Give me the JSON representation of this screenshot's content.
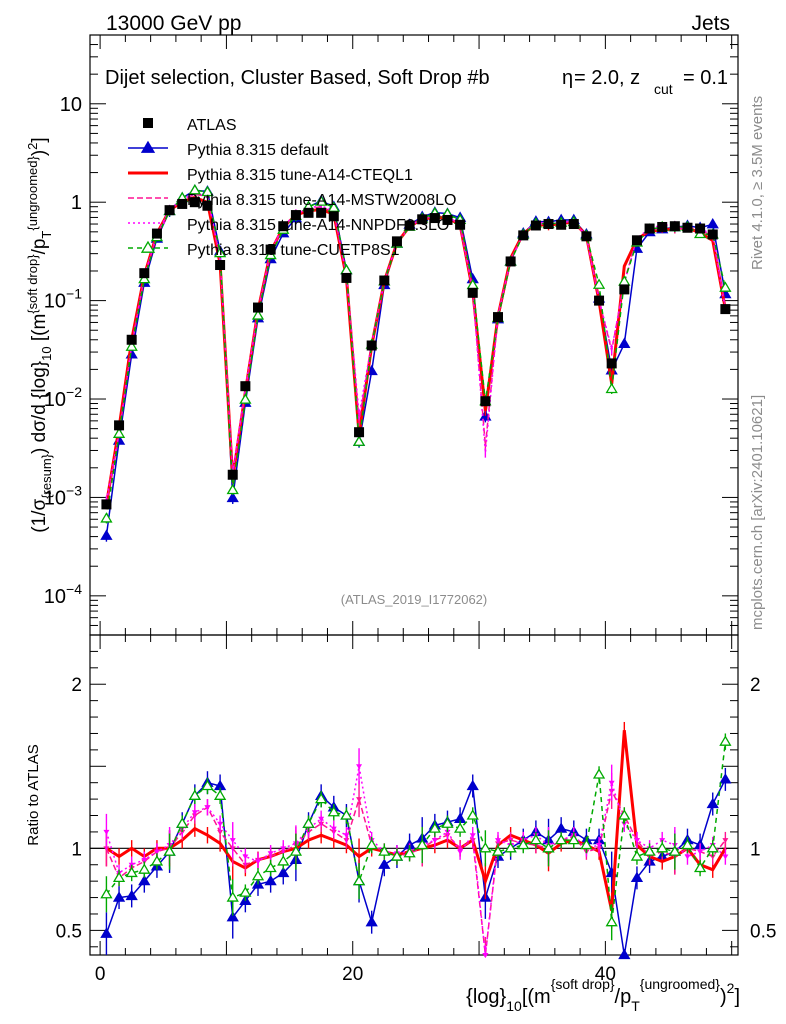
{
  "header": {
    "left": "13000 GeV pp",
    "right": "Jets"
  },
  "chart_data": {
    "type": "line",
    "title": "Dijet selection, Cluster Based, Soft Drop #b",
    "title_extra": "= 2.0, z",
    "title_zcut_sub": "cut",
    "title_zcut_val": "= 0.1",
    "title_eta_symbol": "η",
    "watermark": "(ATLAS_2019_I1772062)",
    "side_text_top": "Rivet 4.1.0, ≥ 3.5M events",
    "side_text_bottom": "mcplots.cern.ch [arXiv:2401.10621]",
    "xlabel": "{log}10[(m^{soft drop}/p_T^{ungroomed})^2]",
    "xlabel_parts": {
      "a": "{log}",
      "b": "10",
      "c": "[(m",
      "d": "{soft drop}",
      "e": "/p",
      "f": "T",
      "g": "{ungroomed}",
      "h": ")",
      "i": "2",
      "j": "]"
    },
    "ylabel_parts": {
      "a": "(1/σ",
      "b": "{resum}",
      "c": ") dσ/d {log}",
      "d": "10",
      "e": " [(m",
      "f": "{soft drop}",
      "g": "/p",
      "h": "T",
      "i": "{ungroomed}",
      "j": ")",
      "k": "2",
      "l": "]"
    },
    "ratio_ylabel": "Ratio to ATLAS",
    "xlim": [
      -0.8,
      50.5
    ],
    "ylim": [
      4e-05,
      50
    ],
    "ratio_ylim": [
      0.35,
      2.3
    ],
    "xticks": [
      0,
      20,
      40
    ],
    "xtick_labels": [
      "0",
      "20",
      "40"
    ],
    "yticks": [
      0.0001,
      0.001,
      0.01,
      0.1,
      1,
      10
    ],
    "ytick_labels": [
      {
        "base": "10",
        "exp": "−4"
      },
      {
        "base": "10",
        "exp": "−3"
      },
      {
        "base": "10",
        "exp": "−2"
      },
      {
        "base": "10",
        "exp": "−1"
      },
      {
        "base": "1",
        "exp": ""
      },
      {
        "base": "10",
        "exp": ""
      }
    ],
    "ratio_yticks": [
      0.5,
      1,
      2
    ],
    "ratio_ytick_labels": [
      "0.5",
      "1",
      "2"
    ],
    "x": [
      0.5,
      1.5,
      2.5,
      3.5,
      4.5,
      5.5,
      6.5,
      7.5,
      8.5,
      9.5,
      10.5,
      11.5,
      12.5,
      13.5,
      14.5,
      15.5,
      16.5,
      17.5,
      18.5,
      19.5,
      20.5,
      21.5,
      22.5,
      23.5,
      24.5,
      25.5,
      26.5,
      27.5,
      28.5,
      29.5,
      30.5,
      31.5,
      32.5,
      33.5,
      34.5,
      35.5,
      36.5,
      37.5,
      38.5,
      39.5,
      40.5,
      41.5,
      42.5,
      43.5,
      44.5,
      45.5,
      46.5,
      47.5,
      48.5,
      49.5
    ],
    "series": [
      {
        "name": "ATLAS",
        "color": "#000000",
        "style": "data",
        "values": [
          0.00085,
          0.0054,
          0.04,
          0.19,
          0.48,
          0.83,
          0.96,
          1.0,
          0.92,
          0.23,
          0.0017,
          0.0135,
          0.085,
          0.33,
          0.57,
          0.74,
          0.78,
          0.78,
          0.72,
          0.17,
          0.0046,
          0.035,
          0.16,
          0.4,
          0.58,
          0.67,
          0.69,
          0.66,
          0.59,
          0.12,
          0.0095,
          0.068,
          0.25,
          0.46,
          0.58,
          0.6,
          0.59,
          0.6,
          0.45,
          0.1,
          0.023,
          0.13,
          0.41,
          0.54,
          0.56,
          0.57,
          0.55,
          0.54,
          0.47,
          0.082
        ]
      },
      {
        "name": "Pythia 8.315 default",
        "color": "#0000cc",
        "style": "solid-triangle",
        "ratio": [
          0.48,
          0.7,
          0.71,
          0.8,
          0.89,
          0.98,
          1.15,
          1.32,
          1.4,
          1.38,
          0.58,
          0.68,
          0.78,
          0.8,
          0.85,
          0.93,
          1.15,
          1.32,
          1.25,
          1.2,
          0.8,
          0.55,
          0.9,
          0.95,
          1.02,
          1.06,
          1.14,
          1.16,
          1.18,
          1.38,
          0.7,
          0.95,
          1.0,
          1.05,
          1.1,
          1.05,
          1.12,
          1.1,
          1.05,
          1.05,
          0.85,
          0.28,
          0.82,
          0.92,
          0.95,
          0.98,
          1.05,
          1.02,
          1.27,
          1.42
        ]
      },
      {
        "name": "Pythia 8.315 tune-A14-CTEQL1",
        "color": "#ff0000",
        "style": "solid-thick",
        "ratio": [
          1.0,
          0.95,
          1.0,
          0.95,
          1.0,
          1.0,
          1.05,
          1.12,
          1.08,
          1.03,
          0.92,
          0.88,
          0.93,
          0.95,
          0.98,
          1.0,
          1.05,
          1.08,
          1.05,
          1.02,
          0.95,
          1.0,
          0.98,
          0.96,
          0.98,
          1.0,
          1.02,
          1.05,
          1.0,
          1.05,
          0.8,
          1.02,
          1.08,
          1.05,
          1.02,
          0.97,
          1.03,
          1.05,
          1.02,
          0.98,
          0.62,
          1.72,
          1.02,
          0.95,
          0.92,
          0.95,
          1.0,
          0.9,
          0.87,
          1.0
        ]
      },
      {
        "name": "Pythia 8.315 tune-A14-MSTW2008LO",
        "color": "#ff1493",
        "style": "dashed",
        "ratio": [
          1.0,
          0.82,
          0.88,
          0.92,
          0.98,
          1.0,
          1.1,
          1.2,
          1.25,
          1.1,
          1.0,
          0.9,
          0.93,
          0.95,
          0.98,
          1.02,
          1.1,
          1.15,
          1.1,
          1.05,
          1.3,
          1.02,
          0.98,
          0.95,
          0.97,
          1.0,
          1.05,
          1.08,
          1.0,
          1.05,
          0.35,
          1.03,
          1.05,
          1.03,
          1.02,
          1.0,
          1.05,
          1.07,
          0.98,
          1.0,
          1.35,
          1.2,
          1.05,
          0.95,
          0.98,
          0.95,
          1.0,
          0.98,
          0.95,
          1.05
        ]
      },
      {
        "name": "Pythia 8.315 tune-A14-NNPDF2.3LO",
        "color": "#ff00ff",
        "style": "dotted",
        "ratio": [
          1.1,
          0.85,
          0.9,
          0.93,
          0.98,
          1.02,
          1.12,
          1.22,
          1.25,
          1.15,
          1.05,
          0.95,
          0.92,
          0.97,
          1.0,
          1.03,
          1.12,
          1.18,
          1.12,
          1.08,
          1.5,
          1.05,
          0.98,
          0.97,
          0.98,
          1.02,
          1.05,
          1.1,
          0.98,
          1.08,
          0.3,
          1.05,
          1.02,
          1.05,
          1.08,
          1.02,
          1.05,
          1.08,
          1.0,
          1.02,
          1.4,
          1.15,
          1.05,
          1.0,
          1.05,
          1.02,
          0.95,
          0.98,
          1.02,
          0.95
        ]
      },
      {
        "name": "Pythia 8.315 tune-CUETP8S1",
        "color": "#00aa00",
        "style": "dashed-open-triangle",
        "ratio": [
          0.72,
          0.82,
          0.85,
          0.87,
          0.92,
          0.98,
          1.15,
          1.32,
          1.38,
          1.32,
          0.7,
          0.73,
          0.83,
          0.88,
          0.92,
          0.98,
          1.15,
          1.3,
          1.22,
          1.2,
          0.8,
          1.02,
          0.98,
          0.95,
          0.97,
          1.02,
          1.12,
          1.15,
          1.12,
          1.2,
          1.0,
          0.98,
          1.0,
          1.02,
          1.05,
          1.0,
          1.05,
          1.05,
          1.02,
          1.45,
          0.55,
          1.2,
          0.95,
          0.98,
          1.0,
          0.98,
          1.02,
          0.88,
          1.0,
          1.65
        ]
      }
    ]
  }
}
